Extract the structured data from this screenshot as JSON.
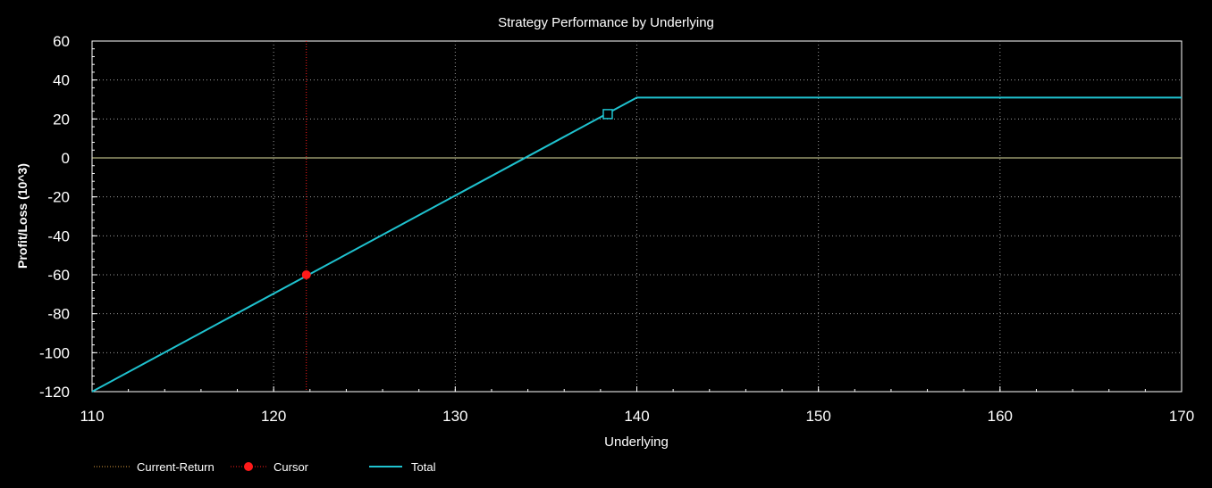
{
  "chart_data": {
    "type": "line",
    "title": "Strategy Performance by Underlying",
    "xlabel": "Underlying",
    "ylabel": "Profit/Loss (10^3)",
    "xlim": [
      110,
      170
    ],
    "ylim": [
      -120,
      60
    ],
    "xticks": [
      110,
      120,
      130,
      140,
      150,
      160,
      170
    ],
    "yticks": [
      60,
      40,
      20,
      0,
      -20,
      -40,
      -60,
      -80,
      -100,
      -120
    ],
    "grid": true,
    "series": [
      {
        "name": "Total",
        "color": "#1fc2cf",
        "x": [
          110,
          140,
          170
        ],
        "y": [
          -120,
          31,
          31
        ]
      }
    ],
    "current_return": {
      "name": "Current-Return",
      "color": "#e0e0a0",
      "y": 0
    },
    "cursor": {
      "name": "Cursor",
      "color": "#ff1a1a",
      "x": 121.8,
      "y": -60
    },
    "marker_point": {
      "x": 138.4,
      "y": 22.5,
      "color": "#1fc2cf"
    },
    "legend": {
      "placement": "bottom-left",
      "entries": [
        "Current-Return",
        "Cursor",
        "Total"
      ]
    }
  }
}
